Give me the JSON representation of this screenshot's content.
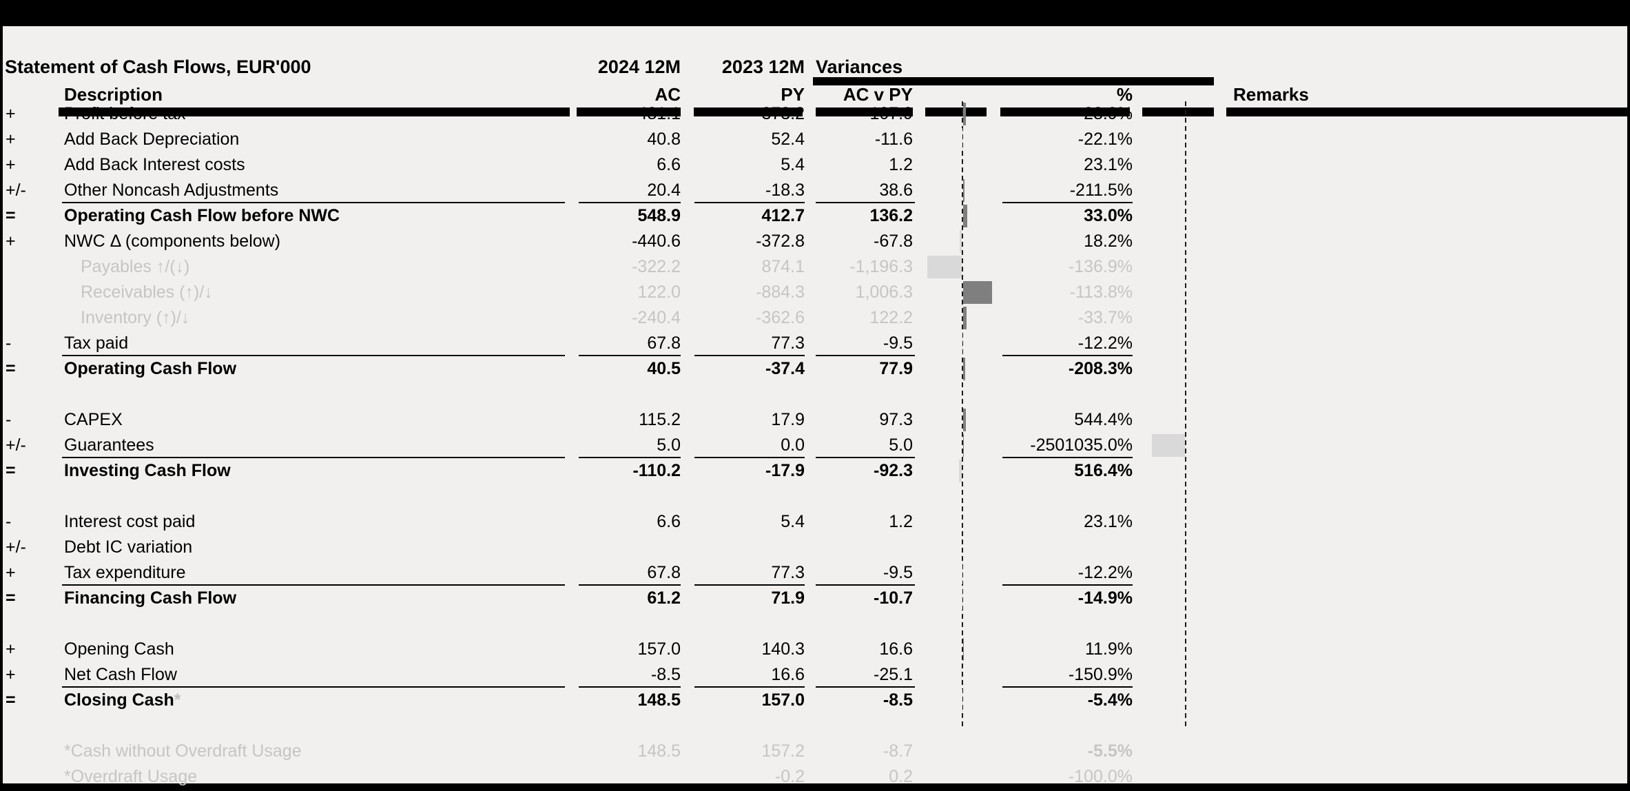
{
  "title": "Statement of Cash Flows, EUR'000",
  "header": {
    "period_actual": "2024 12M",
    "period_prior": "2023 12M",
    "variances": "Variances",
    "description": "Description",
    "ac": "AC",
    "py": "PY",
    "ac_v_py": "AC v PY",
    "percent": "%",
    "remarks": "Remarks"
  },
  "colors": {
    "background": "#f1f0ef",
    "positive_bar": "#7f7f7f",
    "negative_bar": "#d9d9d9",
    "muted_text": "#c6c5c4",
    "ink": "#000000"
  },
  "rows": [
    {
      "sign": "+",
      "label": "Profit before tax",
      "ac": "481.1",
      "py": "373.2",
      "var": "107.9",
      "pct": "28.9%"
    },
    {
      "sign": "+",
      "label": "Add Back Depreciation",
      "ac": "40.8",
      "py": "52.4",
      "var": "-11.6",
      "pct": "-22.1%"
    },
    {
      "sign": "+",
      "label": "Add Back Interest costs",
      "ac": "6.6",
      "py": "5.4",
      "var": "1.2",
      "pct": "23.1%"
    },
    {
      "sign": "+/-",
      "label": "Other Noncash Adjustments",
      "ac": "20.4",
      "py": "-18.3",
      "var": "38.6",
      "pct": "-211.5%",
      "underline": true
    },
    {
      "sign": "=",
      "label": "Operating Cash Flow before NWC",
      "ac": "548.9",
      "py": "412.7",
      "var": "136.2",
      "pct": "33.0%",
      "bold": true
    },
    {
      "sign": "+",
      "label": "NWC Δ (components below)",
      "ac": "-440.6",
      "py": "-372.8",
      "var": "-67.8",
      "pct": "18.2%"
    },
    {
      "sign": "",
      "label": "Payables ↑/(↓)",
      "ac": "-322.2",
      "py": "874.1",
      "var": "-1,196.3",
      "pct": "-136.9%",
      "gray": true,
      "indent": true
    },
    {
      "sign": "",
      "label": "Receivables (↑)/↓",
      "ac": "122.0",
      "py": "-884.3",
      "var": "1,006.3",
      "pct": "-113.8%",
      "gray": true,
      "indent": true
    },
    {
      "sign": "",
      "label": "Inventory (↑)/↓",
      "ac": "-240.4",
      "py": "-362.6",
      "var": "122.2",
      "pct": "-33.7%",
      "gray": true,
      "indent": true
    },
    {
      "sign": "-",
      "label": "Tax paid",
      "ac": "67.8",
      "py": "77.3",
      "var": "-9.5",
      "pct": "-12.2%",
      "underline": true
    },
    {
      "sign": "=",
      "label": "Operating Cash Flow",
      "ac": "40.5",
      "py": "-37.4",
      "var": "77.9",
      "pct": "-208.3%",
      "bold": true
    },
    {
      "sign": "",
      "label": "",
      "ac": "",
      "py": "",
      "var": "",
      "pct": ""
    },
    {
      "sign": "-",
      "label": "CAPEX",
      "ac": "115.2",
      "py": "17.9",
      "var": "97.3",
      "pct": "544.4%"
    },
    {
      "sign": "+/-",
      "label": "Guarantees",
      "ac": "5.0",
      "py": "0.0",
      "var": "5.0",
      "pct": "-2501035.0%",
      "underline": true
    },
    {
      "sign": "=",
      "label": "Investing Cash Flow",
      "ac": "-110.2",
      "py": "-17.9",
      "var": "-92.3",
      "pct": "516.4%",
      "bold": true
    },
    {
      "sign": "",
      "label": "",
      "ac": "",
      "py": "",
      "var": "",
      "pct": ""
    },
    {
      "sign": "-",
      "label": "Interest cost paid",
      "ac": "6.6",
      "py": "5.4",
      "var": "1.2",
      "pct": "23.1%"
    },
    {
      "sign": "+/-",
      "label": "Debt IC variation",
      "ac": "",
      "py": "",
      "var": "",
      "pct": ""
    },
    {
      "sign": "+",
      "label": "Tax expenditure",
      "ac": "67.8",
      "py": "77.3",
      "var": "-9.5",
      "pct": "-12.2%",
      "underline": true
    },
    {
      "sign": "=",
      "label": "Financing Cash Flow",
      "ac": "61.2",
      "py": "71.9",
      "var": "-10.7",
      "pct": "-14.9%",
      "bold": true
    },
    {
      "sign": "",
      "label": "",
      "ac": "",
      "py": "",
      "var": "",
      "pct": ""
    },
    {
      "sign": "+",
      "label": "Opening Cash",
      "ac": "157.0",
      "py": "140.3",
      "var": "16.6",
      "pct": "11.9%"
    },
    {
      "sign": "+",
      "label": "Net Cash Flow",
      "ac": "-8.5",
      "py": "16.6",
      "var": "-25.1",
      "pct": "-150.9%",
      "underline": true
    },
    {
      "sign": "=",
      "label": "Closing Cash",
      "suffix": "*",
      "ac": "148.5",
      "py": "157.0",
      "var": "-8.5",
      "pct": "-5.4%",
      "bold": true
    },
    {
      "sign": "",
      "label": "",
      "ac": "",
      "py": "",
      "var": "",
      "pct": ""
    },
    {
      "sign": "",
      "label": "*Cash without Overdraft Usage",
      "ac": "148.5",
      "py": "157.2",
      "var": "-8.7",
      "pct": "-5.5%",
      "foot": true,
      "pct_bold": true
    },
    {
      "sign": "",
      "label": "*Overdraft Usage",
      "ac": "",
      "py": "-0.2",
      "var": "0.2",
      "pct": "-100.0%",
      "foot": true
    }
  ]
}
